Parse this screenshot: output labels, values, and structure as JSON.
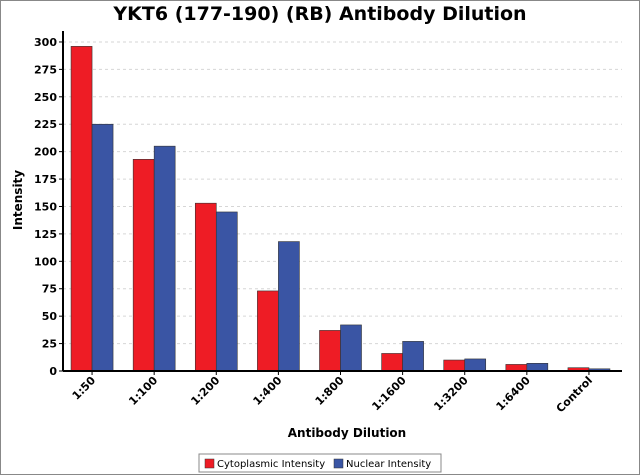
{
  "chart_data": {
    "type": "bar",
    "title": "YKT6 (177-190) (RB) Antibody Dilution",
    "xlabel": "Antibody Dilution",
    "ylabel": "Intensity",
    "categories": [
      "1:50",
      "1:100",
      "1:200",
      "1:400",
      "1:800",
      "1:1600",
      "1:3200",
      "1:6400",
      "Control"
    ],
    "series": [
      {
        "name": "Cytoplasmic Intensity",
        "color": "#ee1c25",
        "values": [
          296,
          193,
          153,
          73,
          37,
          16,
          10,
          6,
          3
        ]
      },
      {
        "name": "Nuclear Intensity",
        "color": "#3a55a4",
        "values": [
          225,
          205,
          145,
          118,
          42,
          27,
          11,
          7,
          2
        ]
      }
    ],
    "ylim": [
      0,
      310
    ],
    "yticks": [
      0,
      25,
      50,
      75,
      100,
      125,
      150,
      175,
      200,
      225,
      250,
      275,
      300
    ],
    "grid": true,
    "legend_position": "bottom"
  }
}
